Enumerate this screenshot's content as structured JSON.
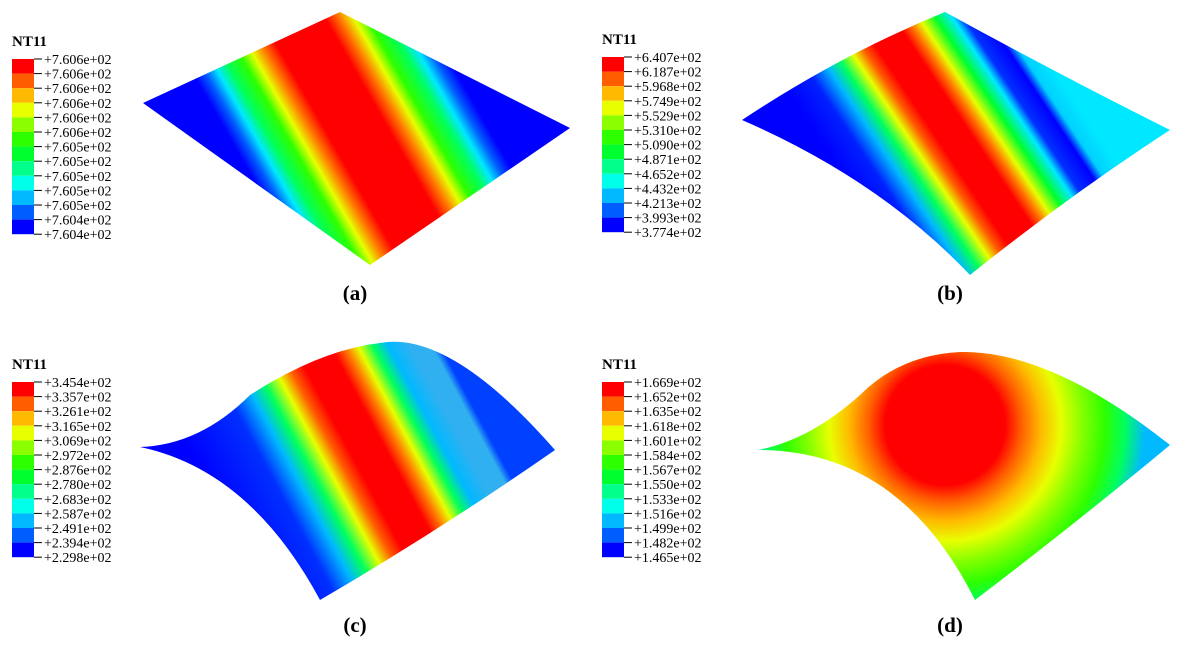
{
  "panels": [
    {
      "legend_title": "NT11",
      "legend_labels": [
        "+7.606e+02",
        "+7.606e+02",
        "+7.606e+02",
        "+7.606e+02",
        "+7.606e+02",
        "+7.606e+02",
        "+7.605e+02",
        "+7.605e+02",
        "+7.605e+02",
        "+7.605e+02",
        "+7.605e+02",
        "+7.604e+02",
        "+7.604e+02"
      ],
      "caption": "(a)"
    },
    {
      "legend_title": "NT11",
      "legend_labels": [
        "+6.407e+02",
        "+6.187e+02",
        "+5.968e+02",
        "+5.749e+02",
        "+5.529e+02",
        "+5.310e+02",
        "+5.090e+02",
        "+4.871e+02",
        "+4.652e+02",
        "+4.432e+02",
        "+4.213e+02",
        "+3.993e+02",
        "+3.774e+02"
      ],
      "caption": "(b)"
    },
    {
      "legend_title": "NT11",
      "legend_labels": [
        "+3.454e+02",
        "+3.357e+02",
        "+3.261e+02",
        "+3.165e+02",
        "+3.069e+02",
        "+2.972e+02",
        "+2.876e+02",
        "+2.780e+02",
        "+2.683e+02",
        "+2.587e+02",
        "+2.491e+02",
        "+2.394e+02",
        "+2.298e+02"
      ],
      "caption": "(c)"
    },
    {
      "legend_title": "NT11",
      "legend_labels": [
        "+1.669e+02",
        "+1.652e+02",
        "+1.635e+02",
        "+1.618e+02",
        "+1.601e+02",
        "+1.584e+02",
        "+1.567e+02",
        "+1.550e+02",
        "+1.533e+02",
        "+1.516e+02",
        "+1.499e+02",
        "+1.482e+02",
        "+1.465e+02"
      ],
      "caption": "(d)"
    }
  ]
}
